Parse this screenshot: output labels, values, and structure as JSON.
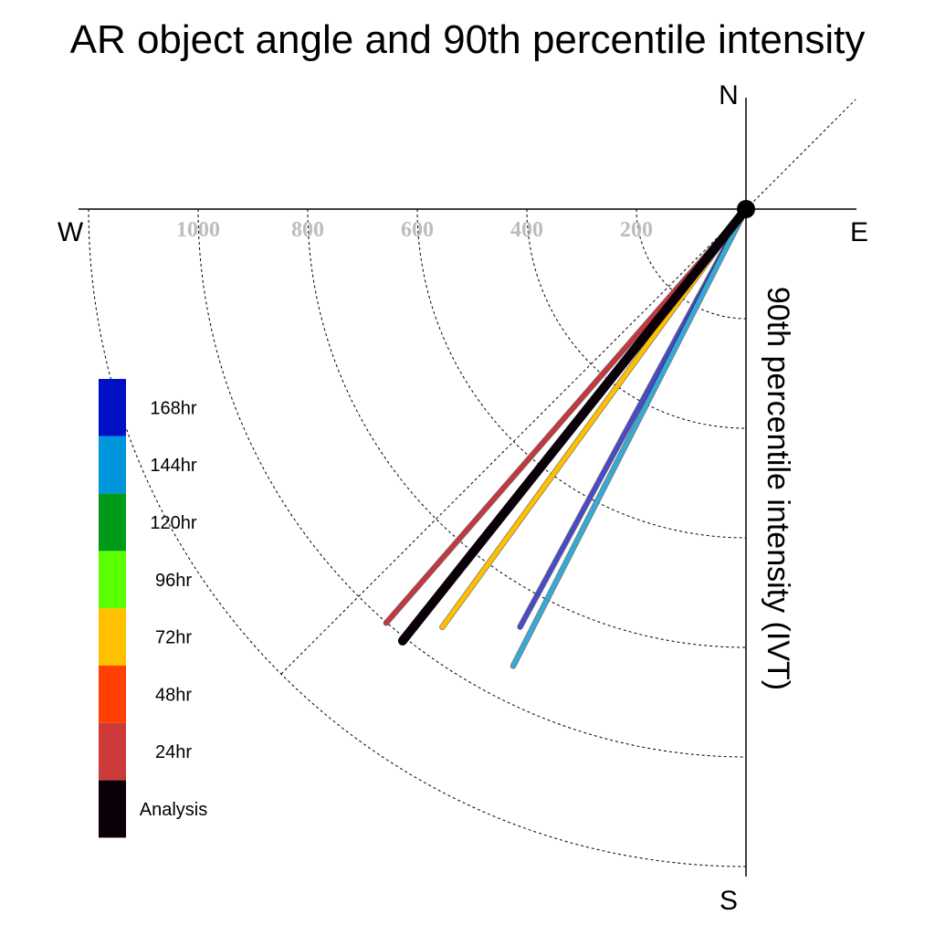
{
  "chart_data": {
    "type": "polar-vector",
    "title": "AR object angle and 90th percentile intensity",
    "ylabel": "90th percentile intensity (IVT)",
    "directions": {
      "north": "N",
      "south": "S",
      "west": "W",
      "east": "E"
    },
    "radial_ticks": [
      200,
      400,
      600,
      800,
      1000
    ],
    "radial_max": 1200,
    "grid": true,
    "reference_angle_deg": 45,
    "legend": [
      {
        "label": "168hr",
        "color": "#0010c4"
      },
      {
        "label": "144hr",
        "color": "#0096dc"
      },
      {
        "label": "120hr",
        "color": "#009a1a"
      },
      {
        "label": "96hr",
        "color": "#5aff00"
      },
      {
        "label": "72hr",
        "color": "#ffc000"
      },
      {
        "label": "48hr",
        "color": "#ff4000"
      },
      {
        "label": "24hr",
        "color": "#cc3a3a"
      },
      {
        "label": "Analysis",
        "color": "#0a0008"
      }
    ],
    "series": [
      {
        "name": "168hr",
        "angle_deg": 208.4,
        "intensity": 867,
        "color": "#4a4ac4",
        "width": 5
      },
      {
        "name": "144hr",
        "angle_deg": 207.0,
        "intensity": 936,
        "color": "#38a9d4",
        "width": 5
      },
      {
        "name": "72hr",
        "angle_deg": 216.0,
        "intensity": 943,
        "color": "#ffc000",
        "width": 5
      },
      {
        "name": "24hr",
        "angle_deg": 221.0,
        "intensity": 1001,
        "color": "#c2383e",
        "width": 5
      },
      {
        "name": "Analysis",
        "angle_deg": 218.5,
        "intensity": 1007,
        "color": "#0a0008",
        "width": 10
      }
    ]
  }
}
